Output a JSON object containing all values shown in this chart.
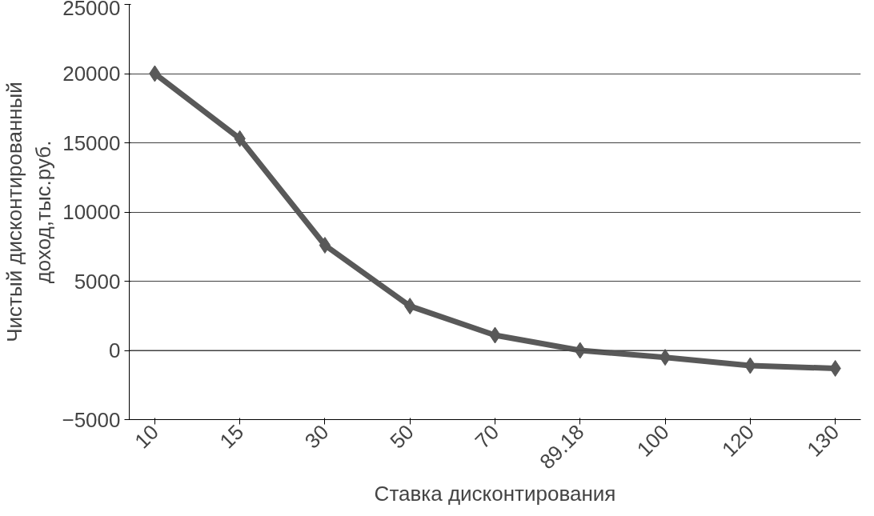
{
  "chart_data": {
    "type": "line",
    "xlabel": "Ставка дисконтирования",
    "ylabel": "Чистый дисконтированный\nдоход,тыс.руб.",
    "categories": [
      "10",
      "15",
      "30",
      "50",
      "70",
      "89.18",
      "100",
      "120",
      "130"
    ],
    "series": [
      {
        "color": "#595959",
        "values": [
          20000,
          15300,
          7600,
          3200,
          1100,
          0,
          -500,
          -1100,
          -1300
        ]
      }
    ],
    "ylim": [
      -5000,
      25000
    ],
    "yticks": [
      -5000,
      0,
      5000,
      10000,
      15000,
      20000,
      25000
    ],
    "grid": "y",
    "marker": "diamond",
    "line_style": "solid"
  }
}
